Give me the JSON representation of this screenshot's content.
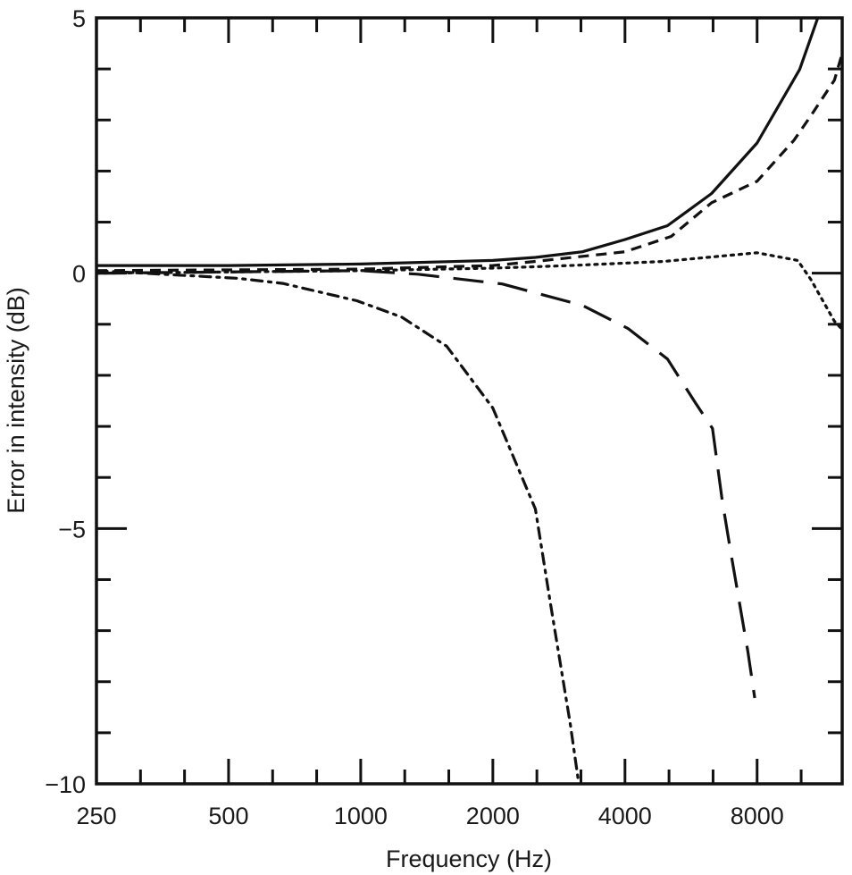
{
  "chart_data": {
    "type": "line",
    "title": "",
    "xlabel": "Frequency (Hz)",
    "ylabel": "Error in intensity (dB)",
    "xscale": "log2",
    "xlim": [
      250,
      12500
    ],
    "ylim": [
      -10,
      5
    ],
    "x_ticks": [
      250,
      500,
      1000,
      2000,
      4000,
      8000
    ],
    "x_tick_labels": [
      "250",
      "500",
      "1000",
      "2000",
      "4000",
      "8000"
    ],
    "x_minor_ticks": "third-octave",
    "y_ticks": [
      5,
      0,
      -5,
      -10
    ],
    "y_tick_labels": [
      "5",
      "0",
      "−5",
      "−10"
    ],
    "y_minor_step": 1,
    "grid": false,
    "legend": "none",
    "color": "#111111",
    "series": [
      {
        "style": "solid",
        "points": [
          [
            250,
            0.15
          ],
          [
            500,
            0.15
          ],
          [
            1000,
            0.18
          ],
          [
            2000,
            0.25
          ],
          [
            2500,
            0.31
          ],
          [
            3200,
            0.42
          ],
          [
            4000,
            0.66
          ],
          [
            5000,
            0.93
          ],
          [
            6300,
            1.56
          ],
          [
            8000,
            2.55
          ],
          [
            10000,
            3.99
          ],
          [
            11000,
            5.0
          ]
        ]
      },
      {
        "style": "dashed",
        "points": [
          [
            250,
            0.05
          ],
          [
            1000,
            0.08
          ],
          [
            2000,
            0.15
          ],
          [
            2500,
            0.23
          ],
          [
            4000,
            0.42
          ],
          [
            5100,
            0.72
          ],
          [
            6300,
            1.38
          ],
          [
            8000,
            1.8
          ],
          [
            9700,
            2.6
          ],
          [
            10600,
            3.08
          ],
          [
            12000,
            3.78
          ],
          [
            12500,
            4.3
          ]
        ]
      },
      {
        "style": "dotted",
        "points": [
          [
            250,
            0.0
          ],
          [
            1000,
            0.05
          ],
          [
            2000,
            0.1
          ],
          [
            3000,
            0.15
          ],
          [
            4900,
            0.23
          ],
          [
            8000,
            0.4
          ],
          [
            9900,
            0.25
          ],
          [
            10600,
            -0.12
          ],
          [
            12000,
            -0.94
          ],
          [
            12500,
            -1.1
          ]
        ]
      },
      {
        "style": "long-dashed",
        "points": [
          [
            250,
            0.0
          ],
          [
            1000,
            0.05
          ],
          [
            1350,
            -0.02
          ],
          [
            2100,
            -0.21
          ],
          [
            3200,
            -0.63
          ],
          [
            4060,
            -1.08
          ],
          [
            5000,
            -1.68
          ],
          [
            5800,
            -2.55
          ],
          [
            6330,
            -3.04
          ],
          [
            6660,
            -4.44
          ],
          [
            6960,
            -5.44
          ],
          [
            7620,
            -7.41
          ],
          [
            7900,
            -8.32
          ]
        ]
      },
      {
        "style": "dash-dot",
        "points": [
          [
            250,
            0.05
          ],
          [
            525,
            -0.1
          ],
          [
            665,
            -0.2
          ],
          [
            980,
            -0.54
          ],
          [
            1240,
            -0.86
          ],
          [
            1570,
            -1.43
          ],
          [
            2000,
            -2.64
          ],
          [
            2500,
            -4.62
          ],
          [
            2700,
            -6.42
          ],
          [
            3000,
            -8.81
          ],
          [
            3140,
            -10
          ]
        ]
      }
    ]
  }
}
